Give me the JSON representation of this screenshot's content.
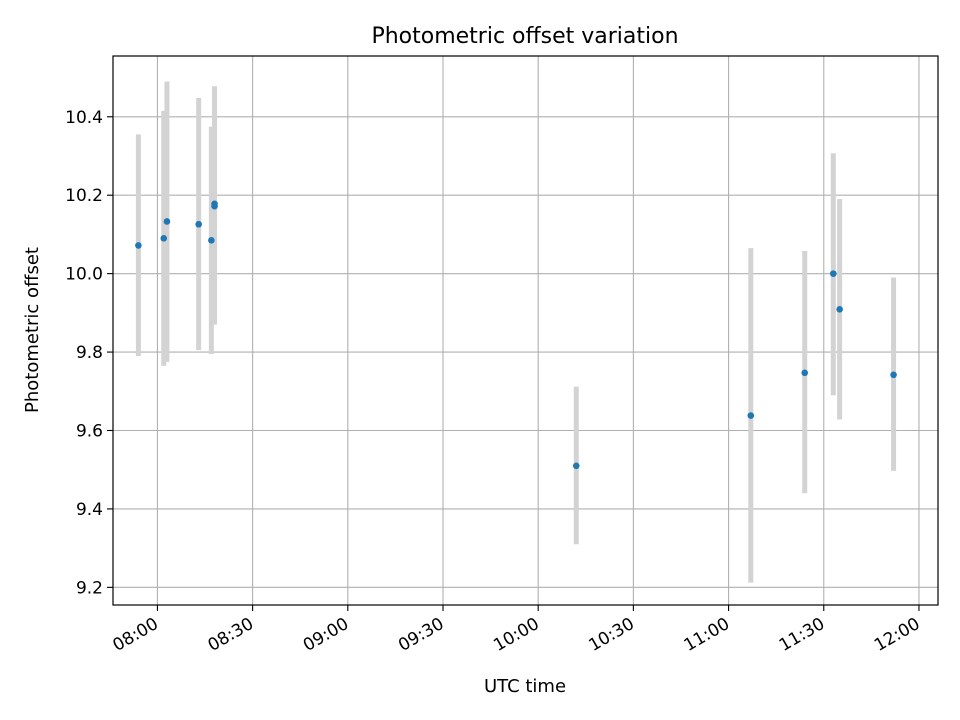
{
  "chart_data": {
    "type": "scatter",
    "title": "Photometric offset variation",
    "xlabel": "UTC time",
    "ylabel": "Photometric offset",
    "xlim": [
      "07:46",
      "12:06"
    ],
    "ylim": [
      9.155,
      10.555
    ],
    "grid": true,
    "x_ticks": [
      "08:00",
      "08:30",
      "09:00",
      "09:30",
      "10:00",
      "10:30",
      "11:00",
      "11:30",
      "12:00"
    ],
    "y_ticks": [
      9.2,
      9.4,
      9.6,
      9.8,
      10.0,
      10.2,
      10.4
    ],
    "y_tick_labels": [
      "9.2",
      "9.4",
      "9.6",
      "9.8",
      "10.0",
      "10.2",
      "10.4"
    ],
    "point_color": "#1f77b4",
    "errorbar_color": "#d3d3d3",
    "points": [
      {
        "x": "07:54",
        "y": 10.072,
        "low": 9.79,
        "high": 10.355
      },
      {
        "x": "08:02",
        "y": 10.09,
        "low": 9.765,
        "high": 10.415
      },
      {
        "x": "08:03",
        "y": 10.133,
        "low": 9.775,
        "high": 10.49
      },
      {
        "x": "08:13",
        "y": 10.126,
        "low": 9.805,
        "high": 10.448
      },
      {
        "x": "08:17",
        "y": 10.085,
        "low": 9.795,
        "high": 10.375
      },
      {
        "x": "08:18",
        "y": 10.178,
        "low": 9.875,
        "high": 10.478
      },
      {
        "x": "08:18",
        "y": 10.172,
        "low": 9.87,
        "high": 10.474
      },
      {
        "x": "10:12",
        "y": 9.51,
        "low": 9.31,
        "high": 9.712
      },
      {
        "x": "11:07",
        "y": 9.638,
        "low": 9.212,
        "high": 10.065
      },
      {
        "x": "11:24",
        "y": 9.747,
        "low": 9.44,
        "high": 10.058
      },
      {
        "x": "11:33",
        "y": 10.0,
        "low": 9.69,
        "high": 10.307
      },
      {
        "x": "11:35",
        "y": 9.909,
        "low": 9.628,
        "high": 10.19
      },
      {
        "x": "11:52",
        "y": 9.742,
        "low": 9.497,
        "high": 9.99
      }
    ]
  }
}
